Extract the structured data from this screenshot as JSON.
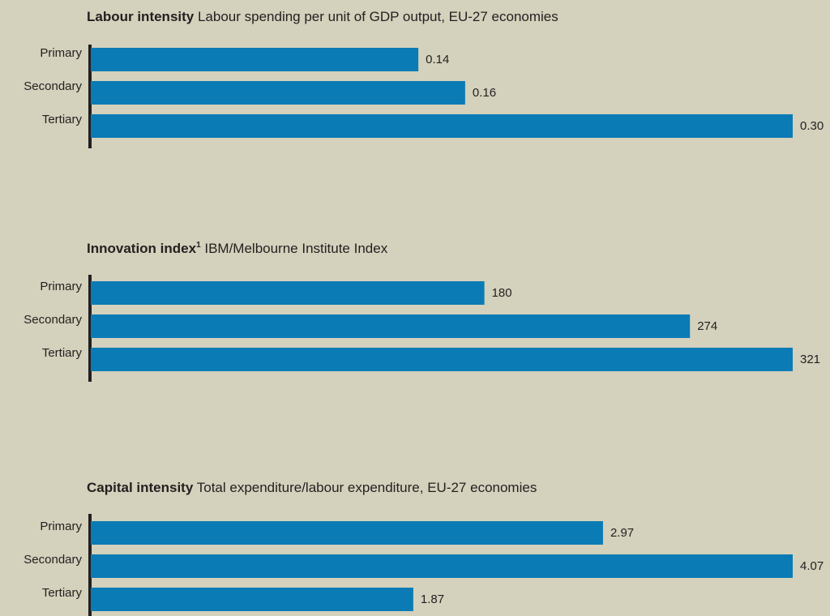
{
  "chart_data": [
    {
      "type": "bar",
      "orientation": "horizontal",
      "title": "Labour intensity",
      "subtitle": "Labour spending per unit of GDP output, EU-27 economies",
      "categories": [
        "Primary",
        "Secondary",
        "Tertiary"
      ],
      "values": [
        0.14,
        0.16,
        0.3
      ],
      "value_labels": [
        "0.14",
        "0.16",
        "0.30"
      ],
      "xlim": [
        0,
        0.3
      ],
      "color": "#0a7bb5",
      "grid": false,
      "legend": "none"
    },
    {
      "type": "bar",
      "orientation": "horizontal",
      "title": "Innovation index",
      "title_superscript": "1",
      "subtitle": "IBM/Melbourne Institute Index",
      "categories": [
        "Primary",
        "Secondary",
        "Tertiary"
      ],
      "values": [
        180,
        274,
        321
      ],
      "value_labels": [
        "180",
        "274",
        "321"
      ],
      "xlim": [
        0,
        321
      ],
      "color": "#0a7bb5",
      "grid": false,
      "legend": "none"
    },
    {
      "type": "bar",
      "orientation": "horizontal",
      "title": "Capital intensity",
      "subtitle": "Total expenditure/labour expenditure, EU-27 economies",
      "categories": [
        "Primary",
        "Secondary",
        "Tertiary"
      ],
      "values": [
        2.97,
        4.07,
        1.87
      ],
      "value_labels": [
        "2.97",
        "4.07",
        "1.87"
      ],
      "xlim": [
        0,
        4.07
      ],
      "color": "#0a7bb5",
      "grid": false,
      "legend": "none"
    }
  ],
  "colors": {
    "background": "#d4d1bc",
    "bar": "#0a7bb5",
    "axis": "#231f20",
    "text": "#231f20"
  }
}
